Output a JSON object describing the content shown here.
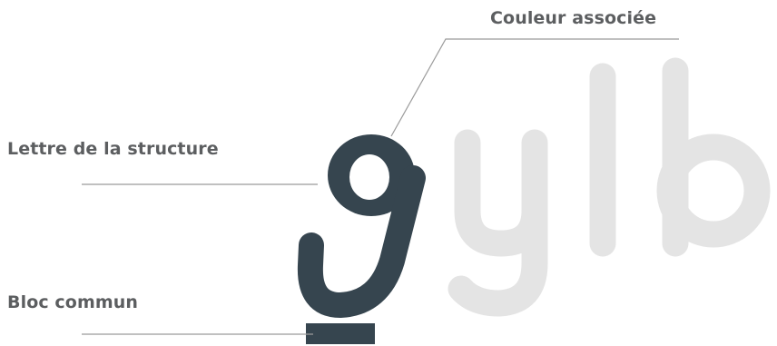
{
  "labels": {
    "color": "Couleur associée",
    "letter": "Lettre de la structure",
    "block": "Bloc commun"
  },
  "logo": {
    "accent_letter": "g",
    "wordmark_rest": "ylb"
  },
  "colors": {
    "dark": "#36454f",
    "light": "#e4e4e4",
    "line": "#9b9b9b",
    "text": "#5c5e60"
  }
}
